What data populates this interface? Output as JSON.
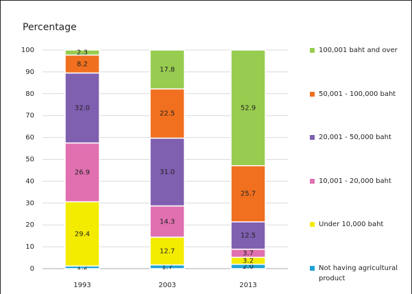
{
  "chart_data": {
    "type": "stacked_bar",
    "title": "Percentage",
    "categories": [
      "1993",
      "2003",
      "2013"
    ],
    "series": [
      {
        "name": "Not having agricultural product",
        "color": "#1fa3d6",
        "values": [
          1.2,
          1.7,
          2.0
        ],
        "value_labels": [
          "1.2",
          "1.7",
          "2.0"
        ]
      },
      {
        "name": "Under 10,000 baht",
        "color": "#f4ec00",
        "values": [
          29.4,
          12.7,
          3.2
        ],
        "value_labels": [
          "29.4",
          "12.7",
          "3.2"
        ]
      },
      {
        "name": "10,001 - 20,000 baht",
        "color": "#e070b0",
        "values": [
          26.9,
          14.3,
          3.7
        ],
        "value_labels": [
          "26.9",
          "14.3",
          "3.7"
        ]
      },
      {
        "name": "20,001 - 50,000 baht",
        "color": "#7f5fb0",
        "values": [
          32.0,
          31.0,
          12.5
        ],
        "value_labels": [
          "32.0",
          "31.0",
          "12.5"
        ]
      },
      {
        "name": "50,001 - 100,000 baht",
        "color": "#f07020",
        "values": [
          8.2,
          22.5,
          25.7
        ],
        "value_labels": [
          "8.2",
          "22.5",
          "25.7"
        ]
      },
      {
        "name": "100,001 baht and over",
        "color": "#98cc50",
        "values": [
          2.3,
          17.8,
          52.9
        ],
        "value_labels": [
          "2.3",
          "17.8",
          "52.9"
        ]
      }
    ],
    "ylim": [
      0,
      100
    ],
    "yticks": [
      0,
      10,
      20,
      30,
      40,
      50,
      60,
      70,
      80,
      90,
      100
    ],
    "grid": true,
    "legend": "right"
  }
}
